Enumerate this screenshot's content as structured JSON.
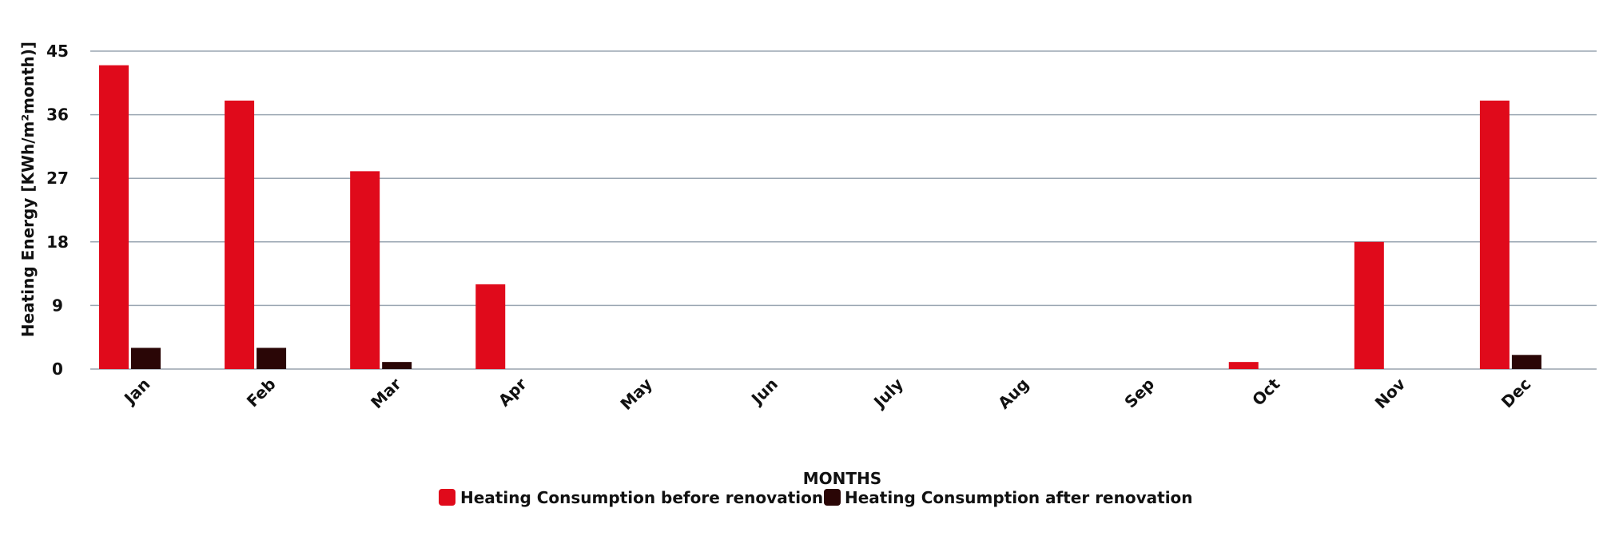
{
  "chart_data": {
    "type": "bar",
    "title": "",
    "xlabel": "MONTHS",
    "ylabel": "Heating Energy [KWh/m²month)]",
    "categories": [
      "Jan",
      "Feb",
      "Mar",
      "Apr",
      "May",
      "Jun",
      "July",
      "Aug",
      "Sep",
      "Oct",
      "Nov",
      "Dec"
    ],
    "series": [
      {
        "name": "Heating Consumption before renovation",
        "color": "#e00a1b",
        "values": [
          43,
          38,
          28,
          12,
          0,
          0,
          0,
          0,
          0,
          1,
          18,
          38
        ]
      },
      {
        "name": "Heating Consumption after renovation",
        "color": "#2a0606",
        "values": [
          3,
          3,
          1,
          0,
          0,
          0,
          0,
          0,
          0,
          0,
          0,
          2
        ]
      }
    ],
    "ylim": [
      0,
      45
    ],
    "yticks": [
      "0",
      "9",
      "18",
      "27",
      "36",
      "45"
    ],
    "grid": true,
    "legend_position": "bottom-center"
  }
}
